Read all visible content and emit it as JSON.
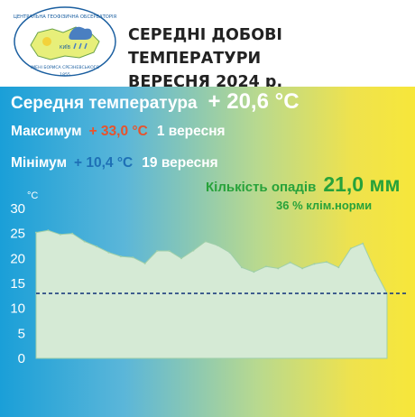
{
  "header": {
    "title_line1": "СЕРЕДНІ ДОБОВІ ТЕМПЕРАТУРИ",
    "title_line2": "ВЕРЕСНЯ 2024 р.",
    "logo_text_top": "ЦЕНТРАЛЬНА ГЕОФІЗИЧНА ОБСЕРВАТОРІЯ",
    "logo_text_bottom": "ІМЕНІ БОРИСА СРЕЗНЕВСЬКОГО",
    "logo_city": "КИЇВ",
    "logo_year": "1855"
  },
  "stats": {
    "avg_label": "Середня температура",
    "avg_value": "+ 20,6 °C",
    "max_label": "Максимум",
    "max_value": "+ 33,0 °C",
    "max_date": "1 вересня",
    "min_label": "Мінімум",
    "min_value": "+ 10,4 °C",
    "min_date": "19 вересня"
  },
  "precipitation": {
    "label": "Кількість опадів",
    "value": "21,0 мм",
    "norm": "36 % клім.норми"
  },
  "colors": {
    "area_fill": "#d5ead5",
    "area_line": "#9fcfa9",
    "norm_line": "#1f3f7f",
    "max_value": "#e8532c",
    "min_value": "#1e70b6",
    "precip": "#27a23a"
  },
  "chart_data": {
    "type": "area",
    "unit_label": "°C",
    "x": [
      1,
      2,
      3,
      4,
      5,
      6,
      7,
      8,
      9,
      10,
      11,
      12,
      13,
      14,
      15,
      16,
      17,
      18,
      19,
      20,
      21,
      22,
      23,
      24,
      25,
      26,
      27,
      28,
      29,
      30
    ],
    "values": [
      25.2,
      25.6,
      24.8,
      25.0,
      23.4,
      22.4,
      21.2,
      20.4,
      20.2,
      19.0,
      21.5,
      21.5,
      20.0,
      21.6,
      23.4,
      22.6,
      21.2,
      18.2,
      17.3,
      18.4,
      18.0,
      19.2,
      18.0,
      18.9,
      19.3,
      18.2,
      22.0,
      23.0,
      17.6,
      13.0
    ],
    "norm_value": 13.0,
    "ylim": [
      0,
      30
    ],
    "yticks": [
      0,
      5,
      10,
      15,
      20,
      25,
      30
    ],
    "grid": false,
    "legend": "none"
  }
}
